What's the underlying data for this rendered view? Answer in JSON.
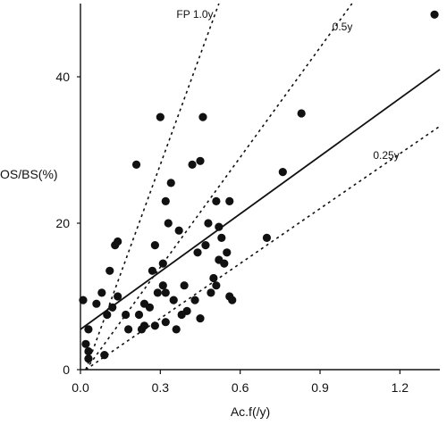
{
  "chart_data": {
    "type": "scatter",
    "title": "",
    "xlabel": "Ac.f(/y)",
    "ylabel": "OS/BS(%)",
    "xlim": [
      0,
      1.35
    ],
    "ylim": [
      0,
      50
    ],
    "xticks": [
      0.0,
      0.3,
      0.6,
      0.9,
      1.2
    ],
    "xtick_labels": [
      "0.0",
      "0.3",
      "0.6",
      "0.9",
      "1.2"
    ],
    "yticks": [
      0,
      20,
      40
    ],
    "ytick_labels": [
      "0",
      "20",
      "40"
    ],
    "grid": false,
    "legend": "none",
    "points": [
      {
        "x": 0.01,
        "y": 9.5
      },
      {
        "x": 0.02,
        "y": 3.5
      },
      {
        "x": 0.03,
        "y": 5.5
      },
      {
        "x": 0.03,
        "y": 2.5
      },
      {
        "x": 0.03,
        "y": 1.5
      },
      {
        "x": 0.06,
        "y": 9.0
      },
      {
        "x": 0.08,
        "y": 10.5
      },
      {
        "x": 0.09,
        "y": 2.0
      },
      {
        "x": 0.1,
        "y": 7.5
      },
      {
        "x": 0.11,
        "y": 13.5
      },
      {
        "x": 0.12,
        "y": 8.5
      },
      {
        "x": 0.13,
        "y": 17.0
      },
      {
        "x": 0.14,
        "y": 17.5
      },
      {
        "x": 0.14,
        "y": 10.0
      },
      {
        "x": 0.17,
        "y": 7.5
      },
      {
        "x": 0.18,
        "y": 5.5
      },
      {
        "x": 0.21,
        "y": 28.0
      },
      {
        "x": 0.22,
        "y": 7.5
      },
      {
        "x": 0.23,
        "y": 5.5
      },
      {
        "x": 0.24,
        "y": 9.0
      },
      {
        "x": 0.24,
        "y": 6.0
      },
      {
        "x": 0.26,
        "y": 8.5
      },
      {
        "x": 0.27,
        "y": 13.5
      },
      {
        "x": 0.28,
        "y": 6.0
      },
      {
        "x": 0.28,
        "y": 17.0
      },
      {
        "x": 0.29,
        "y": 10.5
      },
      {
        "x": 0.3,
        "y": 34.5
      },
      {
        "x": 0.31,
        "y": 11.5
      },
      {
        "x": 0.31,
        "y": 14.5
      },
      {
        "x": 0.32,
        "y": 10.5
      },
      {
        "x": 0.32,
        "y": 6.5
      },
      {
        "x": 0.32,
        "y": 23.0
      },
      {
        "x": 0.33,
        "y": 20.0
      },
      {
        "x": 0.34,
        "y": 25.5
      },
      {
        "x": 0.35,
        "y": 9.5
      },
      {
        "x": 0.36,
        "y": 5.5
      },
      {
        "x": 0.37,
        "y": 19.0
      },
      {
        "x": 0.38,
        "y": 7.5
      },
      {
        "x": 0.39,
        "y": 11.5
      },
      {
        "x": 0.4,
        "y": 8.0
      },
      {
        "x": 0.42,
        "y": 28.0
      },
      {
        "x": 0.43,
        "y": 9.5
      },
      {
        "x": 0.44,
        "y": 16.0
      },
      {
        "x": 0.45,
        "y": 7.0
      },
      {
        "x": 0.45,
        "y": 28.5
      },
      {
        "x": 0.46,
        "y": 34.5
      },
      {
        "x": 0.47,
        "y": 17.0
      },
      {
        "x": 0.48,
        "y": 20.0
      },
      {
        "x": 0.49,
        "y": 10.5
      },
      {
        "x": 0.5,
        "y": 12.5
      },
      {
        "x": 0.51,
        "y": 11.5
      },
      {
        "x": 0.51,
        "y": 23.0
      },
      {
        "x": 0.52,
        "y": 19.5
      },
      {
        "x": 0.52,
        "y": 15.0
      },
      {
        "x": 0.53,
        "y": 18.0
      },
      {
        "x": 0.54,
        "y": 14.5
      },
      {
        "x": 0.55,
        "y": 16.0
      },
      {
        "x": 0.56,
        "y": 10.0
      },
      {
        "x": 0.56,
        "y": 23.0
      },
      {
        "x": 0.57,
        "y": 9.5
      },
      {
        "x": 0.7,
        "y": 18.0
      },
      {
        "x": 0.76,
        "y": 27.0
      },
      {
        "x": 0.83,
        "y": 35.0
      },
      {
        "x": 1.33,
        "y": 48.5
      }
    ],
    "regression": {
      "type": "line",
      "from": [
        0.0,
        5.5
      ],
      "to": [
        1.35,
        41.0
      ]
    },
    "reference_lines": [
      {
        "label": "FP  1.0y",
        "slope": 100,
        "from": [
          0.02,
          0.0
        ],
        "to": [
          0.52,
          50.0
        ]
      },
      {
        "label": "0.5y",
        "slope": 50,
        "from": [
          0.02,
          0.0
        ],
        "to": [
          1.02,
          50.0
        ]
      },
      {
        "label": "0.25y",
        "slope": 25,
        "from": [
          0.02,
          0.0
        ],
        "to": [
          1.35,
          33.25
        ]
      }
    ]
  }
}
